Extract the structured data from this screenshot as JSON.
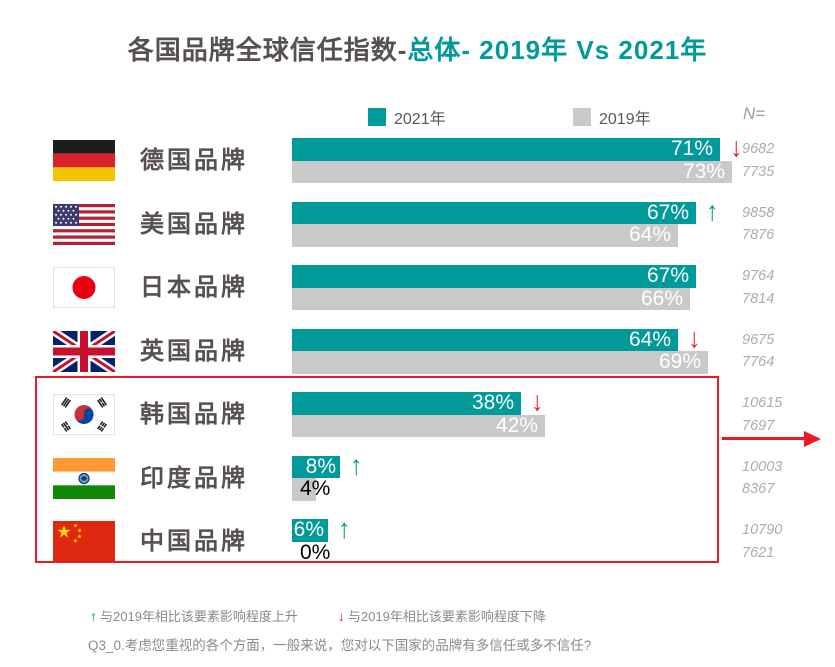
{
  "title": {
    "prefix": "各国品牌全球信任指数-",
    "highlight": "总体- 2019年 Vs 2021年"
  },
  "legend": [
    {
      "label": "2021年"
    },
    {
      "label": "2019年"
    }
  ],
  "n_header": "N=",
  "glyphs": {
    "up": "↑",
    "down": "↓"
  },
  "colors": {
    "teal": "#009A9B",
    "bar_gray": "#C9C9C9",
    "red": "#EC1B23",
    "green": "#00A551",
    "title_dark": "#575052"
  },
  "rows": [
    {
      "id": "germany",
      "flag": "germany-flag",
      "label": "德国品牌",
      "value_2021": 71,
      "value_2019": 73,
      "display_2021": "71%",
      "display_2019": "73%",
      "trend": "down",
      "n_2021": "9682",
      "n_2019": "7735",
      "label_2019_outside": false
    },
    {
      "id": "usa",
      "flag": "usa-flag",
      "label": "美国品牌",
      "value_2021": 67,
      "value_2019": 64,
      "display_2021": "67%",
      "display_2019": "64%",
      "trend": "up",
      "n_2021": "9858",
      "n_2019": "7876",
      "label_2019_outside": false
    },
    {
      "id": "japan",
      "flag": "japan-flag",
      "label": "日本品牌",
      "value_2021": 67,
      "value_2019": 66,
      "display_2021": "67%",
      "display_2019": "66%",
      "trend": "none",
      "n_2021": "9764",
      "n_2019": "7814",
      "label_2019_outside": false
    },
    {
      "id": "uk",
      "flag": "uk-flag",
      "label": "英国品牌",
      "value_2021": 64,
      "value_2019": 69,
      "display_2021": "64%",
      "display_2019": "69%",
      "trend": "down",
      "n_2021": "9675",
      "n_2019": "7764",
      "label_2019_outside": false
    },
    {
      "id": "korea",
      "flag": "korea-flag",
      "label": "韩国品牌",
      "value_2021": 38,
      "value_2019": 42,
      "display_2021": "38%",
      "display_2019": "42%",
      "trend": "down",
      "n_2021": "10615",
      "n_2019": "7697",
      "label_2019_outside": false
    },
    {
      "id": "india",
      "flag": "india-flag",
      "label": "印度品牌",
      "value_2021": 8,
      "value_2019": 4,
      "display_2021": "8%",
      "display_2019": "4%",
      "trend": "up",
      "n_2021": "10003",
      "n_2019": "8367",
      "label_2019_outside": true
    },
    {
      "id": "china",
      "flag": "china-flag",
      "label": "中国品牌",
      "value_2021": 6,
      "value_2019": 0,
      "display_2021": "6%",
      "display_2019": "0%",
      "trend": "up",
      "n_2021": "10790",
      "n_2019": "7621",
      "label_2019_outside": true
    }
  ],
  "highlight_box": {
    "rows": [
      "korea",
      "india",
      "china"
    ]
  },
  "footnote": {
    "up_text": "与2019年相比该要素影响程度上升",
    "down_text": "与2019年相比该要素影响程度下降"
  },
  "question": "Q3_0.考虑您重视的各个方面，一般来说，您对以下国家的品牌有多信任或多不信任?",
  "chart_data": {
    "type": "bar",
    "orientation": "horizontal",
    "title": "各国品牌全球信任指数-总体- 2019年 Vs 2021年",
    "categories": [
      "德国品牌",
      "美国品牌",
      "日本品牌",
      "英国品牌",
      "韩国品牌",
      "印度品牌",
      "中国品牌"
    ],
    "series": [
      {
        "name": "2021年",
        "color": "#009A9B",
        "values": [
          71,
          67,
          67,
          64,
          38,
          8,
          6
        ]
      },
      {
        "name": "2019年",
        "color": "#C9C9C9",
        "values": [
          73,
          64,
          66,
          69,
          42,
          4,
          0
        ]
      }
    ],
    "trend_vs_2019": [
      "down",
      "up",
      "none",
      "down",
      "down",
      "up",
      "up"
    ],
    "sample_sizes_n": [
      {
        "n_2021": 9682,
        "n_2019": 7735
      },
      {
        "n_2021": 9858,
        "n_2019": 7876
      },
      {
        "n_2021": 9764,
        "n_2019": 7814
      },
      {
        "n_2021": 9675,
        "n_2019": 7764
      },
      {
        "n_2021": 10615,
        "n_2019": 7697
      },
      {
        "n_2021": 10003,
        "n_2019": 8367
      },
      {
        "n_2021": 10790,
        "n_2019": 7621
      }
    ],
    "xlim": [
      0,
      100
    ],
    "value_unit": "%",
    "legend_position": "top",
    "grid": false,
    "highlighted_categories": [
      "韩国品牌",
      "印度品牌",
      "中国品牌"
    ]
  }
}
